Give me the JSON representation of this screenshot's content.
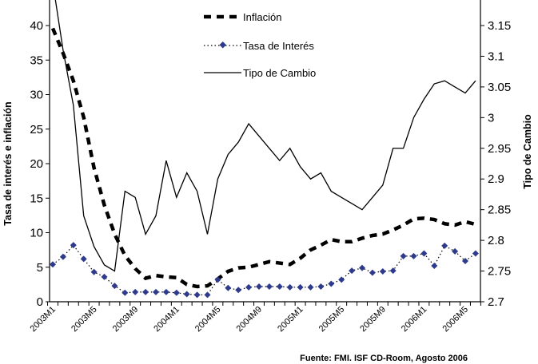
{
  "chart_data": {
    "type": "line",
    "x": [
      "2003M1",
      "2003M2",
      "2003M3",
      "2003M4",
      "2003M5",
      "2003M6",
      "2003M7",
      "2003M8",
      "2003M9",
      "2003M10",
      "2003M11",
      "2003M12",
      "2004M1",
      "2004M2",
      "2004M3",
      "2004M4",
      "2004M5",
      "2004M6",
      "2004M7",
      "2004M8",
      "2004M9",
      "2004M10",
      "2004M11",
      "2004M12",
      "2005M1",
      "2005M2",
      "2005M3",
      "2005M4",
      "2005M5",
      "2005M6",
      "2005M7",
      "2005M8",
      "2005M9",
      "2005M10",
      "2005M11",
      "2005M12",
      "2006M1",
      "2006M2",
      "2006M3",
      "2006M4",
      "2006M5",
      "2006M6"
    ],
    "x_tick_labels": [
      "2003M1",
      "2003M5",
      "2003M9",
      "2004M1",
      "2004M5",
      "2004M9",
      "2005M1",
      "2005M5",
      "2005M9",
      "2006M1",
      "2006M5"
    ],
    "ylabel": "Tasa de interés e inflación",
    "y2label": "Tipo de Cambio",
    "ylim": [
      0,
      40
    ],
    "y_ticks": [
      "0",
      "5",
      "10",
      "15",
      "20",
      "25",
      "30",
      "35",
      "40"
    ],
    "y2lim": [
      2.7,
      3.15
    ],
    "y2_ticks": [
      "2.7",
      "2.75",
      "2.8",
      "2.85",
      "2.9",
      "2.95",
      "3",
      "3.05",
      "3.1",
      "3.15"
    ],
    "legend_placement": "top-center",
    "grid": false,
    "series": [
      {
        "name": "Inflación",
        "axis": "left",
        "style": "dashed",
        "color": "#000000",
        "values": [
          39.6,
          36,
          32,
          26.7,
          19.4,
          14,
          9.8,
          6.7,
          4.8,
          3.4,
          3.8,
          3.6,
          3.5,
          2.5,
          2.2,
          2.3,
          3.3,
          4.4,
          4.9,
          5.0,
          5.4,
          5.8,
          5.6,
          5.4,
          6.3,
          7.5,
          8.2,
          9.0,
          8.7,
          8.7,
          9.2,
          9.6,
          9.8,
          10.4,
          11.1,
          12.0,
          12.1,
          11.9,
          11.3,
          11.1,
          11.6,
          11.2
        ]
      },
      {
        "name": "Tasa de Interés",
        "axis": "left",
        "style": "dotted-diamond",
        "color": "#2e3a8c",
        "values": [
          5.4,
          6.5,
          8.2,
          6.2,
          4.3,
          3.6,
          2.3,
          1.3,
          1.4,
          1.4,
          1.4,
          1.4,
          1.3,
          1.1,
          1.0,
          1.0,
          3.2,
          2.0,
          1.7,
          2.1,
          2.2,
          2.2,
          2.2,
          2.1,
          2.1,
          2.1,
          2.2,
          2.6,
          3.2,
          4.5,
          4.9,
          4.2,
          4.4,
          4.5,
          6.6,
          6.6,
          7.0,
          5.2,
          8.1,
          7.3,
          5.9,
          7.0
        ]
      },
      {
        "name": "Tipo de Cambio",
        "axis": "right",
        "style": "solid",
        "color": "#000000",
        "values": [
          3.22,
          3.11,
          3.02,
          2.84,
          2.79,
          2.76,
          2.75,
          2.88,
          2.87,
          2.81,
          2.84,
          2.93,
          2.87,
          2.91,
          2.88,
          2.81,
          2.9,
          2.94,
          2.96,
          2.99,
          2.97,
          2.95,
          2.93,
          2.95,
          2.92,
          2.9,
          2.91,
          2.88,
          2.87,
          2.86,
          2.85,
          2.87,
          2.89,
          2.95,
          2.95,
          3.0,
          3.03,
          3.055,
          3.06,
          3.05,
          3.04,
          3.06
        ]
      }
    ]
  },
  "source": "Fuente: FMI. ISF CD-Room, Agosto 2006"
}
